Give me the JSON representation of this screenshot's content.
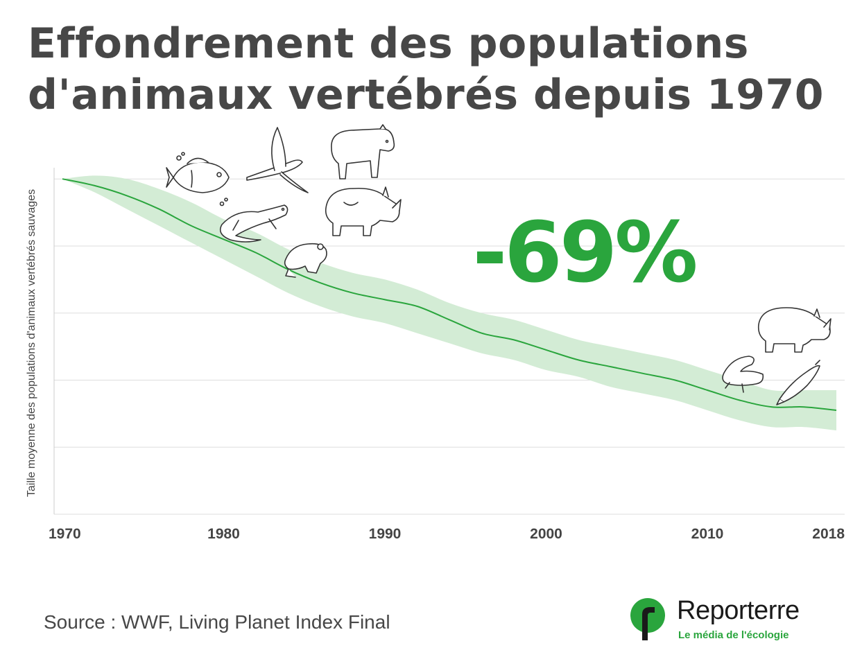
{
  "title_lines": [
    "Effondrement des populations",
    "d'animaux vertébrés depuis 1970"
  ],
  "source": "Source : WWF, Living Planet Index Final",
  "logo": {
    "name": "Reporterre",
    "tagline": "Le média de l'écologie",
    "icon": "reporterre-logo-icon"
  },
  "colors": {
    "line": "#2aa53d",
    "band": "#d3ecd5",
    "grid": "#dddddd",
    "title": "#474747",
    "accent": "#2aa53d"
  },
  "chart_data": {
    "type": "area",
    "title": "Effondrement des populations d'animaux vertébrés depuis 1970",
    "ylabel": "Taille moyenne des populations d'animaux vertébrés sauvages",
    "xlabel": "",
    "x_ticks": [
      "1970",
      "1980",
      "1990",
      "2000",
      "2010",
      "2018"
    ],
    "x_tick_values": [
      1970,
      1980,
      1990,
      2000,
      2010,
      2018
    ],
    "xlim": [
      1970,
      2018
    ],
    "ylim": [
      0,
      1.05
    ],
    "y_ticks_unlabeled": [
      0.2,
      0.4,
      0.6,
      0.8,
      1.0
    ],
    "grid": true,
    "annotation": "-69%",
    "icons": [
      "fish-icon",
      "bird-icon",
      "bear-icon",
      "rhino-icon",
      "salamander-icon",
      "frog-icon",
      "salmon-icon"
    ],
    "series": [
      {
        "x": [
          1970,
          1972,
          1974,
          1976,
          1978,
          1980,
          1982,
          1984,
          1986,
          1988,
          1990,
          1992,
          1994,
          1996,
          1998,
          2000,
          2002,
          2004,
          2006,
          2008,
          2010,
          2012,
          2014,
          2016,
          2018
        ],
        "values": [
          1.0,
          0.98,
          0.95,
          0.91,
          0.86,
          0.82,
          0.78,
          0.73,
          0.69,
          0.66,
          0.64,
          0.62,
          0.58,
          0.54,
          0.52,
          0.49,
          0.46,
          0.44,
          0.42,
          0.4,
          0.37,
          0.34,
          0.32,
          0.32,
          0.31
        ],
        "lower": [
          1.0,
          0.96,
          0.91,
          0.86,
          0.81,
          0.76,
          0.71,
          0.66,
          0.62,
          0.59,
          0.57,
          0.54,
          0.51,
          0.48,
          0.46,
          0.43,
          0.41,
          0.38,
          0.36,
          0.34,
          0.31,
          0.28,
          0.26,
          0.26,
          0.25
        ],
        "upper": [
          1.0,
          1.01,
          1.0,
          0.97,
          0.93,
          0.88,
          0.84,
          0.79,
          0.75,
          0.72,
          0.7,
          0.67,
          0.63,
          0.6,
          0.58,
          0.55,
          0.52,
          0.5,
          0.48,
          0.46,
          0.43,
          0.4,
          0.37,
          0.37,
          0.37
        ]
      }
    ]
  }
}
